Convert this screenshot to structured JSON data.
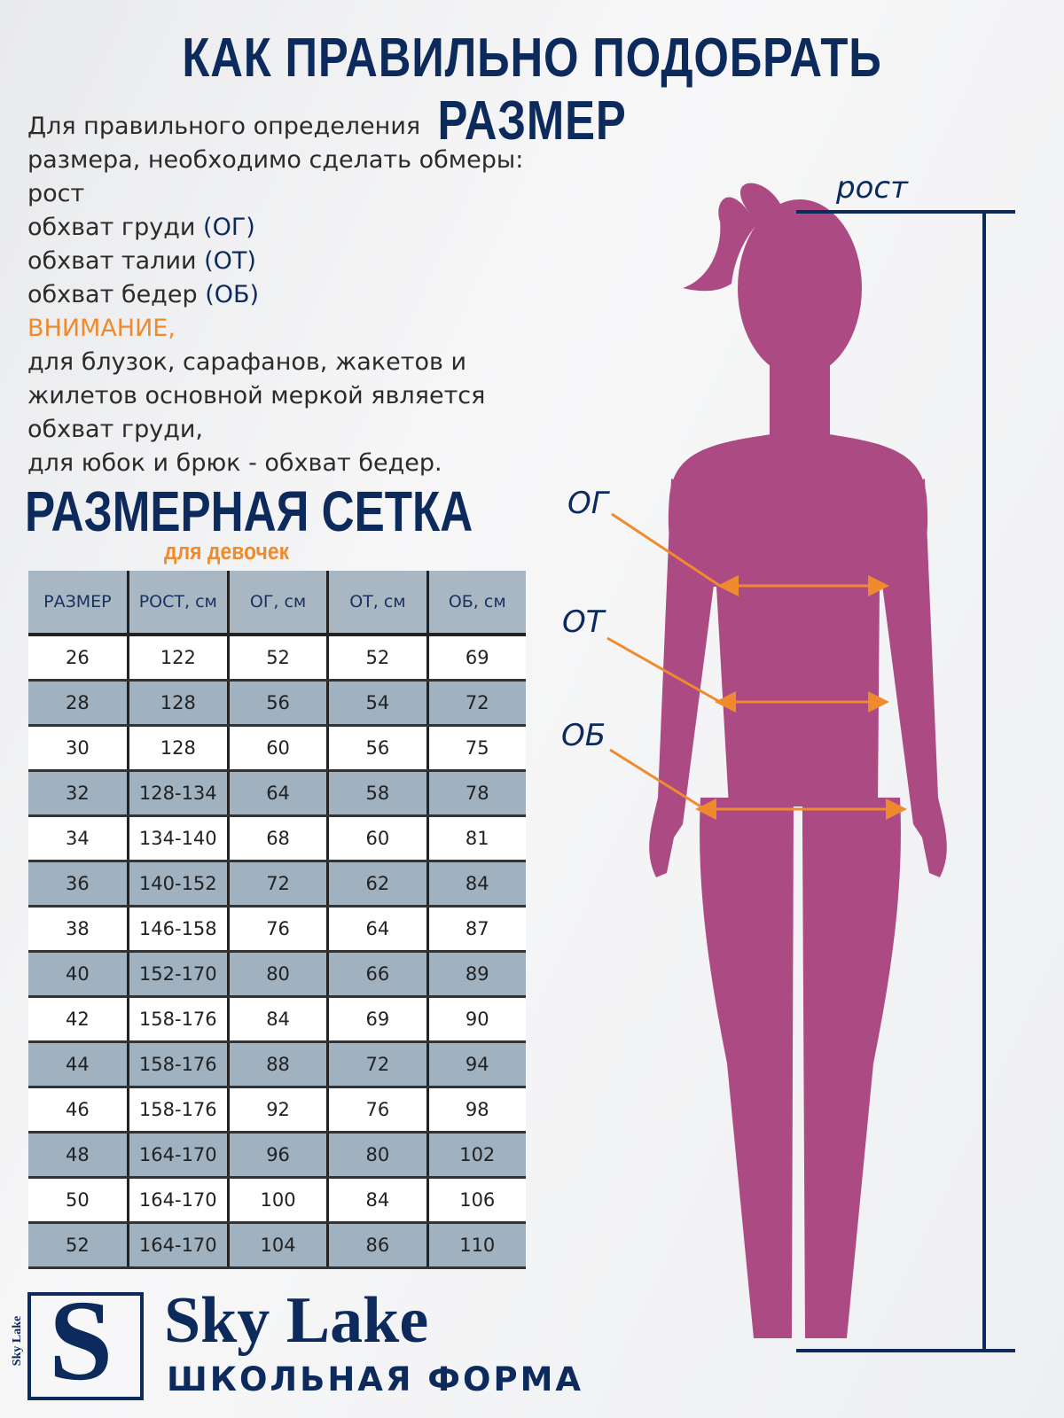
{
  "header": {
    "title": "КАК ПРАВИЛЬНО ПОДОБРАТЬ РАЗМЕР"
  },
  "intro": {
    "lines": [
      "Для правильного определения",
      "размера, необходимо сделать обмеры:",
      "рост"
    ],
    "measures": [
      {
        "label": "обхват груди",
        "abbr": "(ОГ)"
      },
      {
        "label": "обхват талии",
        "abbr": "(ОТ)"
      },
      {
        "label": "обхват бедер",
        "abbr": "(ОБ)"
      }
    ],
    "attention": "ВНИМАНИЕ,",
    "note": [
      "для блузок, сарафанов, жакетов и",
      "жилетов основной меркой является",
      "обхват груди,",
      "для юбок и брюк - обхват бедер."
    ]
  },
  "table": {
    "title": "РАЗМЕРНАЯ СЕТКА",
    "subtitle": "для девочек",
    "headers": [
      "РАЗМЕР",
      "РОСТ, см",
      "ОГ, см",
      "ОТ, см",
      "ОБ, см"
    ],
    "rows": [
      [
        26,
        122,
        52,
        52,
        69
      ],
      [
        28,
        128,
        56,
        54,
        72
      ],
      [
        30,
        128,
        60,
        56,
        75
      ],
      [
        32,
        "128-134",
        64,
        58,
        78
      ],
      [
        34,
        "134-140",
        68,
        60,
        81
      ],
      [
        36,
        "140-152",
        72,
        62,
        84
      ],
      [
        38,
        "146-158",
        76,
        64,
        87
      ],
      [
        40,
        "152-170",
        80,
        66,
        89
      ],
      [
        42,
        "158-176",
        84,
        69,
        90
      ],
      [
        44,
        "158-176",
        88,
        72,
        94
      ],
      [
        46,
        "158-176",
        92,
        76,
        98
      ],
      [
        48,
        "164-170",
        96,
        80,
        102
      ],
      [
        50,
        "164-170",
        100,
        84,
        106
      ],
      [
        52,
        "164-170",
        104,
        86,
        110
      ]
    ]
  },
  "figure": {
    "height_label": "рост",
    "chest_label": "ОГ",
    "waist_label": "ОТ",
    "hips_label": "ОБ"
  },
  "logo": {
    "letter": "S",
    "side_text": "Sky Lake",
    "brand": "Sky Lake",
    "tagline": "ШКОЛЬНАЯ ФОРМА"
  }
}
